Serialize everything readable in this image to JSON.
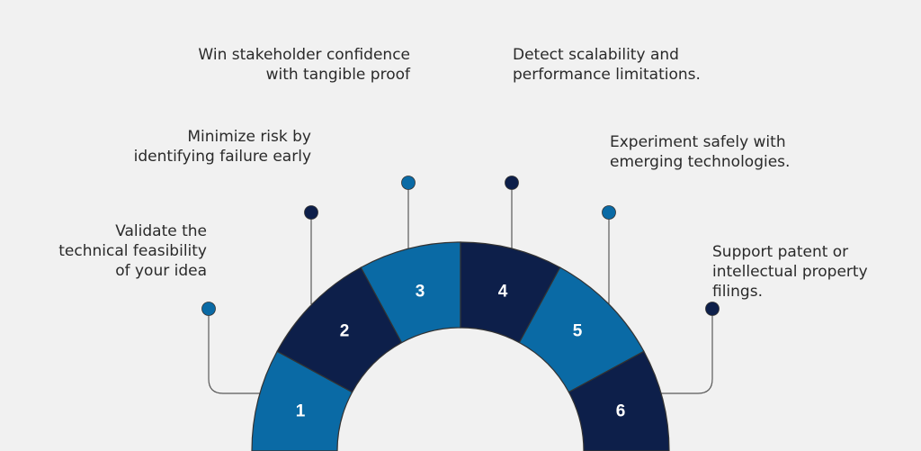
{
  "colors": {
    "background": "#f1f1f1",
    "light_blue": "#0a6aa5",
    "dark_navy": "#0d1f4a",
    "connector": "#5a5a5a",
    "segment_border": "#333333",
    "text": "#2a2a2a",
    "number_text": "#ffffff"
  },
  "steps": [
    {
      "number": "1",
      "text": "Validate the\ntechnical feasibility\nof your idea",
      "fill": "light_blue",
      "dot_fill": "light_blue"
    },
    {
      "number": "2",
      "text": "Minimize risk by\nidentifying failure early",
      "fill": "dark_navy",
      "dot_fill": "dark_navy"
    },
    {
      "number": "3",
      "text": "Win stakeholder confidence\nwith tangible proof",
      "fill": "light_blue",
      "dot_fill": "light_blue"
    },
    {
      "number": "4",
      "text": "Detect scalability and\nperformance limitations.",
      "fill": "dark_navy",
      "dot_fill": "dark_navy"
    },
    {
      "number": "5",
      "text": "Experiment safely with\nemerging technologies.",
      "fill": "light_blue",
      "dot_fill": "light_blue"
    },
    {
      "number": "6",
      "text": "Support patent or\nintellectual property\nfilings.",
      "fill": "dark_navy",
      "dot_fill": "dark_navy"
    }
  ]
}
